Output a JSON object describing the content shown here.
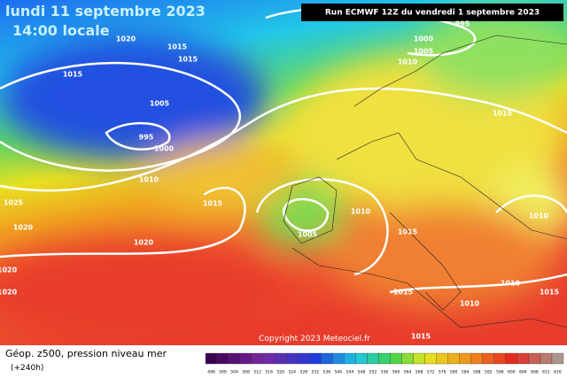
{
  "header": {
    "date": "lundi 11 septembre 2023",
    "time": "14:00 locale",
    "run": "Run ECMWF 12Z du vendredi 1 septembre 2023"
  },
  "copyright": "Copyright 2023 Meteociel.fr",
  "legend": {
    "title": "Géop. z500, pression niveau mer",
    "lead": "(+240h)",
    "scale": [
      496,
      500,
      504,
      508,
      512,
      516,
      520,
      524,
      528,
      532,
      536,
      540,
      544,
      548,
      552,
      556,
      560,
      564,
      568,
      572,
      576,
      580,
      584,
      588,
      592,
      596,
      600,
      604,
      608,
      612,
      616
    ]
  },
  "isobar_labels": [
    "1020",
    "1015",
    "1015",
    "1015",
    "1005",
    "995",
    "1000",
    "1010",
    "1015",
    "1025",
    "1020",
    "1020",
    "1020",
    "1020",
    "1010",
    "1005",
    "1015",
    "1015",
    "1015",
    "1015",
    "1000",
    "1005",
    "1010",
    "995",
    "1010",
    "1015",
    "1010",
    "1010"
  ]
}
